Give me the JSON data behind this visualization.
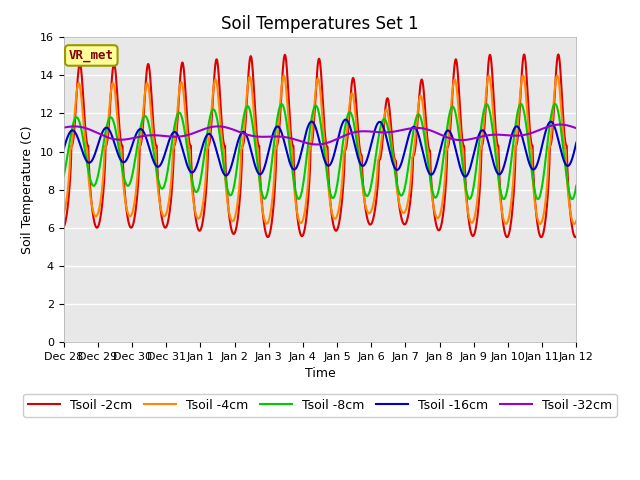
{
  "title": "Soil Temperatures Set 1",
  "xlabel": "Time",
  "ylabel": "Soil Temperature (C)",
  "ylim": [
    0,
    16
  ],
  "series_colors": [
    "#dd0000",
    "#ff8800",
    "#00cc00",
    "#0000cc",
    "#9900cc"
  ],
  "series_labels": [
    "Tsoil -2cm",
    "Tsoil -4cm",
    "Tsoil -8cm",
    "Tsoil -16cm",
    "Tsoil -32cm"
  ],
  "bg_color": "#e8e8e8",
  "fig_bg": "#ffffff",
  "annotation_text": "VR_met",
  "annotation_bbox_fc": "#ffff99",
  "annotation_bbox_ec": "#999900",
  "grid_color": "#ffffff",
  "title_fontsize": 12,
  "axis_label_fontsize": 9,
  "tick_fontsize": 8,
  "legend_fontsize": 9,
  "linewidth": 1.5
}
